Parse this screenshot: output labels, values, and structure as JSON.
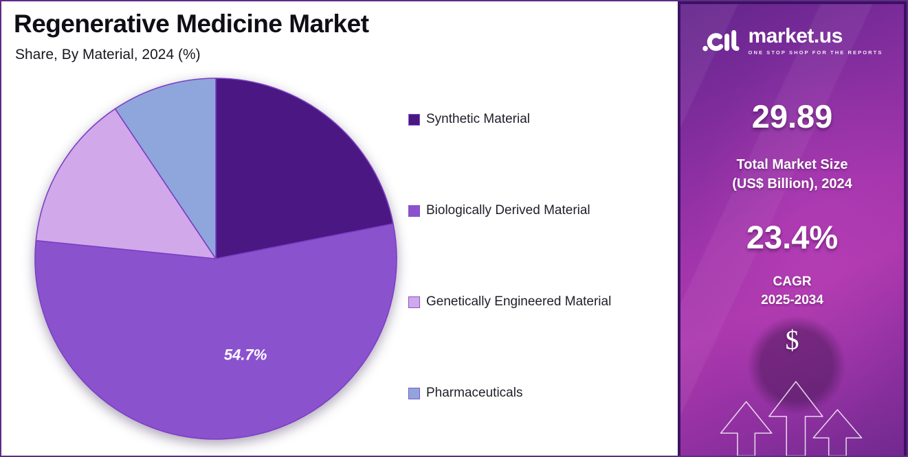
{
  "chart_data": {
    "type": "pie",
    "title": "Regenerative Medicine Market",
    "subtitle": "Share, By Material, 2024 (%)",
    "legend_position": "right",
    "direction": "clockwise",
    "start_angle_deg": 0,
    "note": "Only the 54.7% share carries a data label in the figure; the other slice values are estimated from their arc angles.",
    "slices": [
      {
        "name": "Synthetic Material",
        "value": 21.9,
        "color": "#4B1783",
        "data_label": ""
      },
      {
        "name": "Biologically Derived Material",
        "value": 54.7,
        "color": "#8B52CE",
        "data_label": "54.7%"
      },
      {
        "name": "Genetically Engineered Material",
        "value": 14.0,
        "color": "#D1A8EA",
        "data_label": ""
      },
      {
        "name": "Pharmaceuticals",
        "value": 9.4,
        "color": "#8FA6DC",
        "data_label": ""
      }
    ]
  },
  "sidebar": {
    "brand": {
      "name": "market.us",
      "tagline": "ONE STOP SHOP FOR THE REPORTS"
    },
    "stat_market_size": {
      "value": "29.89",
      "label_line1": "Total Market Size",
      "label_line2": "(US$ Billion), 2024"
    },
    "stat_cagr": {
      "value": "23.4%",
      "label_line1": "CAGR",
      "label_line2": "2025-2034"
    },
    "dollar_symbol": "$"
  },
  "theme": {
    "canvas_border": "#5E2B86",
    "sidebar_border": "#3C1262",
    "slice_stroke": "#7B3FC4",
    "legend_swatch_border": "#8655C8",
    "sidebar_gradient_start": "#63258B",
    "sidebar_gradient_mid": "#AC38AE",
    "sidebar_gradient_end": "#71298F",
    "title_color": "#0E0E14"
  }
}
